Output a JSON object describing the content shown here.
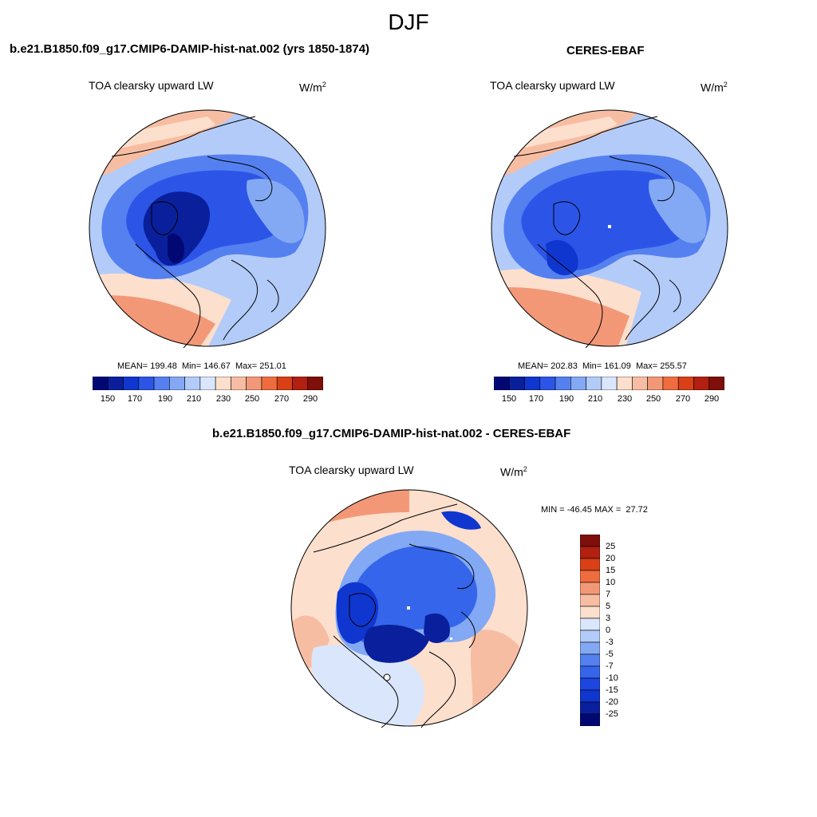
{
  "title": "DJF",
  "palette": [
    "#020873",
    "#0a1f9c",
    "#1036d0",
    "#2c55e8",
    "#5580f0",
    "#83a9f4",
    "#b3cbf8",
    "#dae6fb",
    "#fcdfcd",
    "#f7bda3",
    "#f39877",
    "#ef6c3e",
    "#d94016",
    "#b12010",
    "#7e0f0a"
  ],
  "diff_palette": [
    "#020873",
    "#0a1f9c",
    "#1036d0",
    "#1d45e0",
    "#3565ea",
    "#5580f0",
    "#83a9f4",
    "#b3cbf8",
    "#dae6fb",
    "#fcdfcd",
    "#f7bda3",
    "#f39877",
    "#ef6c3e",
    "#d94016",
    "#b12010",
    "#7e0f0a"
  ],
  "panels": [
    {
      "title": "b.e21.B1850.f09_g17.CMIP6-DAMIP-hist-nat.002 (yrs 1850-1874)",
      "variable": "TOA clearsky upward LW",
      "units": "W/m",
      "units_sup": "2",
      "stats": "MEAN= 199.48  Min= 146.67  Max= 251.01"
    },
    {
      "title": "CERES-EBAF",
      "variable": "TOA clearsky upward LW",
      "units": "W/m",
      "units_sup": "2",
      "stats": "MEAN= 202.83  Min= 161.09  Max= 255.57"
    },
    {
      "title": "b.e21.B1850.f09_g17.CMIP6-DAMIP-hist-nat.002 - CERES-EBAF",
      "variable": "TOA clearsky upward LW",
      "units": "W/m",
      "units_sup": "2",
      "stats": "MIN = -46.45 MAX =  27.72"
    }
  ],
  "colorbar_labels": [
    "150",
    "170",
    "190",
    "210",
    "230",
    "250",
    "270",
    "290"
  ],
  "diff_colorbar_labels": [
    "25",
    "20",
    "15",
    "10",
    "7",
    "5",
    "3",
    "0",
    "-3",
    "-5",
    "-7",
    "-10",
    "-15",
    "-20",
    "-25"
  ]
}
